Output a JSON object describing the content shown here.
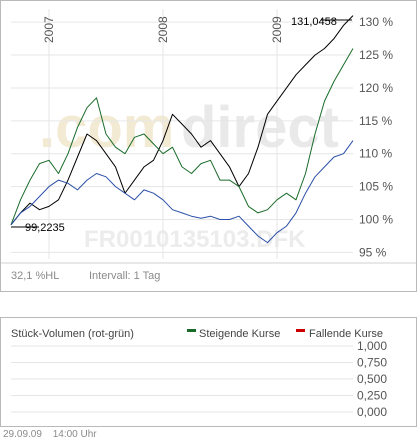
{
  "price_chart": {
    "watermark_logo": "comdirect",
    "watermark_isin": "FR0010135103.DFK",
    "max_label": "131,0458",
    "min_label": "99,2235",
    "info": {
      "volatility": "32,1 %HL",
      "interval": "Intervall: 1 Tag"
    }
  },
  "volume_chart": {
    "title": "Stück-Volumen (rot-grün)",
    "legend": [
      {
        "label": "Steigende Kurse",
        "color": "#1a6b2a"
      },
      {
        "label": "Fallende Kurse",
        "color": "#cc0000"
      }
    ]
  },
  "footer": {
    "date": "29.09.09",
    "time": "14:00 Uhr"
  },
  "chart_data": [
    {
      "type": "line",
      "x_ticks": [
        "2007",
        "2008",
        "2009"
      ],
      "y_ticks": [
        "95 %",
        "100 %",
        "105 %",
        "110 %",
        "115 %",
        "120 %",
        "125 %",
        "130 %"
      ],
      "ylim": [
        94,
        132
      ],
      "x": [
        "2006-09",
        "2006-10",
        "2006-11",
        "2006-12",
        "2007-01",
        "2007-02",
        "2007-03",
        "2007-04",
        "2007-05",
        "2007-06",
        "2007-07",
        "2007-08",
        "2007-09",
        "2007-10",
        "2007-11",
        "2007-12",
        "2008-01",
        "2008-02",
        "2008-03",
        "2008-04",
        "2008-05",
        "2008-06",
        "2008-07",
        "2008-08",
        "2008-09",
        "2008-10",
        "2008-11",
        "2008-12",
        "2009-01",
        "2009-02",
        "2009-03",
        "2009-04",
        "2009-05",
        "2009-06",
        "2009-07",
        "2009-08",
        "2009-09"
      ],
      "series": [
        {
          "color": "#000000",
          "values": [
            99.2,
            101,
            102.5,
            101.5,
            102,
            103,
            106,
            109.5,
            113,
            112,
            110,
            108,
            104,
            106,
            108,
            109,
            112,
            116,
            114.5,
            113,
            111,
            112,
            110,
            108,
            105,
            107,
            111,
            116,
            118,
            120,
            122,
            123.5,
            125,
            126,
            127.5,
            129.5,
            131
          ]
        },
        {
          "color": "#1a6b2a",
          "values": [
            99.2,
            103,
            106,
            108.5,
            109,
            107,
            110,
            114,
            117,
            118.5,
            113,
            111,
            110,
            112.5,
            113,
            111.5,
            110,
            111,
            108,
            107,
            108.5,
            109,
            106,
            106,
            105,
            102,
            101,
            101.5,
            103,
            104,
            103,
            107,
            113,
            118,
            121,
            123.5,
            126
          ]
        },
        {
          "color": "#2a4fa8",
          "values": [
            99.2,
            101,
            102,
            103.5,
            105,
            106,
            105.5,
            104.5,
            106,
            107,
            106.5,
            105,
            104,
            103,
            104.5,
            104,
            103,
            101.5,
            101,
            100.5,
            100.2,
            100.5,
            100,
            100,
            100.5,
            99,
            97.5,
            96.5,
            98,
            99,
            101,
            104,
            106.5,
            108,
            109.5,
            110,
            112
          ]
        }
      ]
    },
    {
      "type": "bar",
      "title": "Stück-Volumen (rot-grün)",
      "y_ticks": [
        "1,000",
        "0,750",
        "0,500",
        "0,250",
        "0,000"
      ],
      "ylim": [
        0,
        1
      ],
      "series": [
        {
          "name": "Steigende Kurse",
          "values": []
        },
        {
          "name": "Fallende Kurse",
          "values": []
        }
      ]
    }
  ]
}
